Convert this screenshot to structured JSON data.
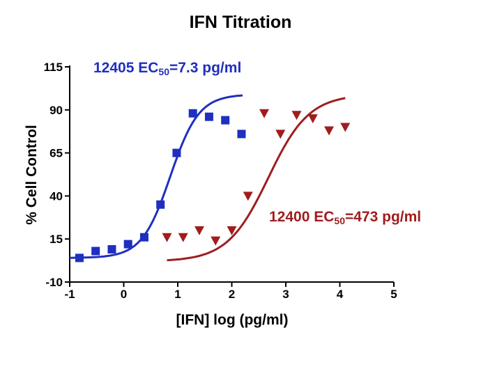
{
  "chart_data": {
    "type": "scatter",
    "title": "IFN Titration",
    "xlabel": "[IFN] log (pg/ml)",
    "ylabel": "% Cell Control",
    "xlim": [
      -1,
      5
    ],
    "ylim": [
      -10,
      115
    ],
    "xticks": [
      "-1",
      "0",
      "1",
      "2",
      "3",
      "4",
      "5"
    ],
    "yticks": [
      "-10",
      "15",
      "40",
      "65",
      "90",
      "115"
    ],
    "grid": false,
    "legend": "none",
    "annotations": [
      {
        "id": "12405",
        "prefix": "12405 EC",
        "sub": "50",
        "suffix": "=7.3 pg/ml",
        "color": "#1f2fbf"
      },
      {
        "id": "12400",
        "prefix": "12400 EC",
        "sub": "50",
        "suffix": "=473 pg/ml",
        "color": "#a01d1d"
      }
    ],
    "series": [
      {
        "marker": "square",
        "color": "#1f2fbf",
        "points": [
          [
            -0.82,
            4
          ],
          [
            -0.52,
            8
          ],
          [
            -0.22,
            9
          ],
          [
            0.08,
            12
          ],
          [
            0.38,
            16
          ],
          [
            0.68,
            35
          ],
          [
            0.98,
            65
          ],
          [
            1.28,
            88
          ],
          [
            1.58,
            86
          ],
          [
            1.88,
            84
          ],
          [
            2.18,
            76
          ]
        ],
        "fit": {
          "bottom": 4,
          "top": 99,
          "logEC50": 0.863,
          "hill": 1.65,
          "xrange": [
            -1,
            2.2
          ]
        }
      },
      {
        "marker": "triangle-down",
        "color": "#a01d1d",
        "points": [
          [
            0.8,
            16
          ],
          [
            1.1,
            16
          ],
          [
            1.4,
            20
          ],
          [
            1.7,
            14
          ],
          [
            2.0,
            20
          ],
          [
            2.3,
            40
          ],
          [
            2.6,
            88
          ],
          [
            2.9,
            76
          ],
          [
            3.2,
            87
          ],
          [
            3.5,
            85
          ],
          [
            3.8,
            78
          ],
          [
            4.1,
            80
          ]
        ],
        "fit": {
          "bottom": 2,
          "top": 99,
          "logEC50": 2.675,
          "hill": 1.15,
          "xrange": [
            0.8,
            4.1
          ]
        }
      }
    ]
  }
}
